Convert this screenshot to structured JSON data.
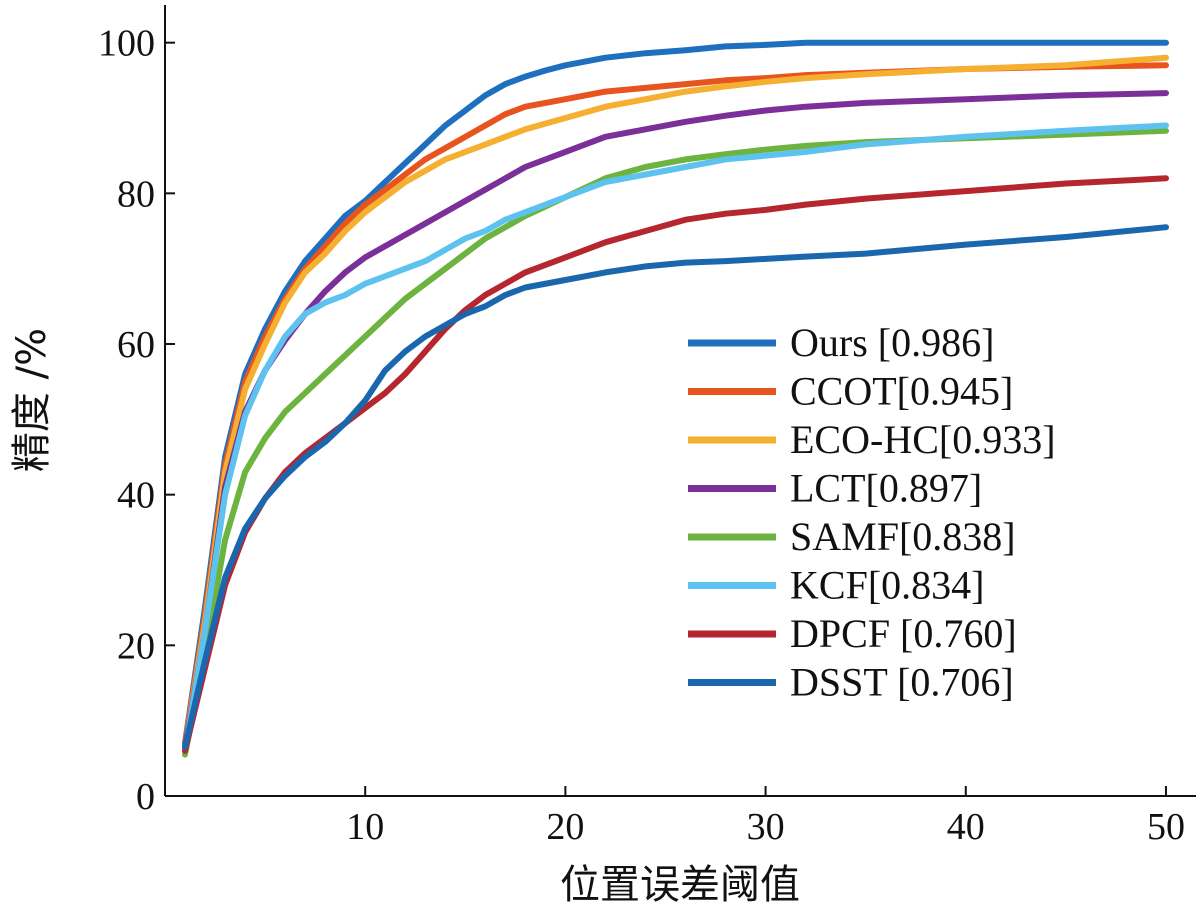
{
  "chart_data": {
    "type": "line",
    "title": "",
    "xlabel": "位置误差阈值",
    "ylabel": "精度 /%",
    "xlim": [
      0,
      51.5
    ],
    "ylim": [
      0,
      105
    ],
    "xticks": [
      10,
      20,
      30,
      40,
      50
    ],
    "yticks": [
      0,
      20,
      40,
      60,
      80,
      100
    ],
    "grid": false,
    "legend_position": "right",
    "series": [
      {
        "name": "Ours",
        "legend_label": "Ours [0.986]",
        "color": "#1f6fbf",
        "points": [
          [
            1,
            7
          ],
          [
            2,
            25
          ],
          [
            3,
            45
          ],
          [
            4,
            56
          ],
          [
            5,
            62
          ],
          [
            6,
            67
          ],
          [
            7,
            71
          ],
          [
            8,
            74
          ],
          [
            9,
            77
          ],
          [
            10,
            79
          ],
          [
            11,
            81.5
          ],
          [
            12,
            84
          ],
          [
            13,
            86.5
          ],
          [
            14,
            89
          ],
          [
            15,
            91
          ],
          [
            16,
            93
          ],
          [
            17,
            94.5
          ],
          [
            18,
            95.5
          ],
          [
            19,
            96.3
          ],
          [
            20,
            97
          ],
          [
            22,
            98
          ],
          [
            24,
            98.6
          ],
          [
            26,
            99
          ],
          [
            28,
            99.5
          ],
          [
            30,
            99.7
          ],
          [
            32,
            100
          ],
          [
            40,
            100
          ],
          [
            50,
            100
          ]
        ]
      },
      {
        "name": "CCOT",
        "legend_label": "CCOT[0.945]",
        "color": "#e8541e",
        "points": [
          [
            1,
            7
          ],
          [
            2,
            24
          ],
          [
            3,
            44
          ],
          [
            4,
            55
          ],
          [
            5,
            61
          ],
          [
            6,
            66
          ],
          [
            7,
            70
          ],
          [
            8,
            73
          ],
          [
            9,
            76
          ],
          [
            10,
            78.5
          ],
          [
            11,
            80.5
          ],
          [
            12,
            82.5
          ],
          [
            13,
            84.5
          ],
          [
            14,
            86
          ],
          [
            15,
            87.5
          ],
          [
            16,
            89
          ],
          [
            17,
            90.5
          ],
          [
            18,
            91.5
          ],
          [
            20,
            92.5
          ],
          [
            22,
            93.5
          ],
          [
            24,
            94
          ],
          [
            26,
            94.5
          ],
          [
            28,
            95
          ],
          [
            30,
            95.3
          ],
          [
            32,
            95.7
          ],
          [
            35,
            96
          ],
          [
            40,
            96.5
          ],
          [
            45,
            96.8
          ],
          [
            50,
            97
          ]
        ]
      },
      {
        "name": "ECO-HC",
        "legend_label": "ECO-HC[0.933]",
        "color": "#f5b031",
        "points": [
          [
            1,
            6.5
          ],
          [
            2,
            23
          ],
          [
            3,
            43
          ],
          [
            4,
            54
          ],
          [
            5,
            60
          ],
          [
            6,
            65.5
          ],
          [
            7,
            69.5
          ],
          [
            8,
            72
          ],
          [
            9,
            75
          ],
          [
            10,
            77.5
          ],
          [
            11,
            79.5
          ],
          [
            12,
            81.5
          ],
          [
            13,
            83
          ],
          [
            14,
            84.5
          ],
          [
            15,
            85.5
          ],
          [
            16,
            86.5
          ],
          [
            17,
            87.5
          ],
          [
            18,
            88.5
          ],
          [
            20,
            90
          ],
          [
            22,
            91.5
          ],
          [
            24,
            92.5
          ],
          [
            26,
            93.5
          ],
          [
            28,
            94.2
          ],
          [
            30,
            94.8
          ],
          [
            32,
            95.3
          ],
          [
            35,
            95.8
          ],
          [
            40,
            96.5
          ],
          [
            45,
            97
          ],
          [
            50,
            98
          ]
        ]
      },
      {
        "name": "LCT",
        "legend_label": "LCT[0.897]",
        "color": "#7b2f98",
        "points": [
          [
            1,
            6.5
          ],
          [
            2,
            22
          ],
          [
            3,
            41
          ],
          [
            4,
            51
          ],
          [
            5,
            56.5
          ],
          [
            6,
            60.5
          ],
          [
            7,
            64
          ],
          [
            8,
            67
          ],
          [
            9,
            69.5
          ],
          [
            10,
            71.5
          ],
          [
            11,
            73
          ],
          [
            12,
            74.5
          ],
          [
            13,
            76
          ],
          [
            14,
            77.5
          ],
          [
            15,
            79
          ],
          [
            16,
            80.5
          ],
          [
            17,
            82
          ],
          [
            18,
            83.5
          ],
          [
            20,
            85.5
          ],
          [
            22,
            87.5
          ],
          [
            24,
            88.5
          ],
          [
            26,
            89.5
          ],
          [
            28,
            90.3
          ],
          [
            30,
            91
          ],
          [
            32,
            91.5
          ],
          [
            35,
            92
          ],
          [
            40,
            92.5
          ],
          [
            45,
            93
          ],
          [
            50,
            93.3
          ]
        ]
      },
      {
        "name": "SAMF",
        "legend_label": "SAMF[0.838]",
        "color": "#6db33f",
        "points": [
          [
            1,
            5.5
          ],
          [
            2,
            19
          ],
          [
            3,
            34
          ],
          [
            4,
            43
          ],
          [
            5,
            47.5
          ],
          [
            6,
            51
          ],
          [
            7,
            53.5
          ],
          [
            8,
            56
          ],
          [
            9,
            58.5
          ],
          [
            10,
            61
          ],
          [
            11,
            63.5
          ],
          [
            12,
            66
          ],
          [
            13,
            68
          ],
          [
            14,
            70
          ],
          [
            15,
            72
          ],
          [
            16,
            74
          ],
          [
            17,
            75.5
          ],
          [
            18,
            77
          ],
          [
            20,
            79.5
          ],
          [
            22,
            82
          ],
          [
            24,
            83.5
          ],
          [
            26,
            84.5
          ],
          [
            28,
            85.2
          ],
          [
            30,
            85.8
          ],
          [
            32,
            86.3
          ],
          [
            35,
            86.8
          ],
          [
            40,
            87.3
          ],
          [
            45,
            87.8
          ],
          [
            50,
            88.3
          ]
        ]
      },
      {
        "name": "KCF",
        "legend_label": "KCF[0.834]",
        "color": "#5ec2ee",
        "points": [
          [
            1,
            6
          ],
          [
            2,
            22
          ],
          [
            3,
            40
          ],
          [
            4,
            50.5
          ],
          [
            5,
            56.5
          ],
          [
            6,
            61
          ],
          [
            7,
            64
          ],
          [
            8,
            65.5
          ],
          [
            9,
            66.5
          ],
          [
            10,
            68
          ],
          [
            11,
            69
          ],
          [
            12,
            70
          ],
          [
            13,
            71
          ],
          [
            14,
            72.5
          ],
          [
            15,
            74
          ],
          [
            16,
            75
          ],
          [
            17,
            76.5
          ],
          [
            18,
            77.5
          ],
          [
            20,
            79.5
          ],
          [
            22,
            81.5
          ],
          [
            24,
            82.5
          ],
          [
            26,
            83.5
          ],
          [
            28,
            84.5
          ],
          [
            30,
            85
          ],
          [
            32,
            85.5
          ],
          [
            35,
            86.5
          ],
          [
            40,
            87.5
          ],
          [
            45,
            88.3
          ],
          [
            50,
            89
          ]
        ]
      },
      {
        "name": "DPCF",
        "legend_label": "DPCF [0.760]",
        "color": "#b5262f",
        "points": [
          [
            1,
            6
          ],
          [
            2,
            17
          ],
          [
            3,
            28
          ],
          [
            4,
            35
          ],
          [
            5,
            39.5
          ],
          [
            6,
            43
          ],
          [
            7,
            45.5
          ],
          [
            8,
            47.5
          ],
          [
            9,
            49.5
          ],
          [
            10,
            51.5
          ],
          [
            11,
            53.5
          ],
          [
            12,
            56
          ],
          [
            13,
            59
          ],
          [
            14,
            62
          ],
          [
            15,
            64.5
          ],
          [
            16,
            66.5
          ],
          [
            17,
            68
          ],
          [
            18,
            69.5
          ],
          [
            20,
            71.5
          ],
          [
            22,
            73.5
          ],
          [
            24,
            75
          ],
          [
            26,
            76.5
          ],
          [
            28,
            77.3
          ],
          [
            30,
            77.8
          ],
          [
            32,
            78.5
          ],
          [
            35,
            79.3
          ],
          [
            40,
            80.3
          ],
          [
            45,
            81.3
          ],
          [
            50,
            82
          ]
        ]
      },
      {
        "name": "DSST",
        "legend_label": "DSST [0.706]",
        "color": "#1b67ae",
        "points": [
          [
            1,
            6.5
          ],
          [
            2,
            18
          ],
          [
            3,
            29
          ],
          [
            4,
            35.5
          ],
          [
            5,
            39.5
          ],
          [
            6,
            42.5
          ],
          [
            7,
            45
          ],
          [
            8,
            47
          ],
          [
            9,
            49.5
          ],
          [
            10,
            52.5
          ],
          [
            11,
            56.5
          ],
          [
            12,
            59
          ],
          [
            13,
            61
          ],
          [
            14,
            62.5
          ],
          [
            15,
            64
          ],
          [
            16,
            65
          ],
          [
            17,
            66.5
          ],
          [
            18,
            67.5
          ],
          [
            20,
            68.5
          ],
          [
            22,
            69.5
          ],
          [
            24,
            70.3
          ],
          [
            26,
            70.8
          ],
          [
            28,
            71
          ],
          [
            30,
            71.3
          ],
          [
            32,
            71.6
          ],
          [
            35,
            72
          ],
          [
            40,
            73.2
          ],
          [
            45,
            74.2
          ],
          [
            50,
            75.5
          ]
        ]
      }
    ]
  }
}
